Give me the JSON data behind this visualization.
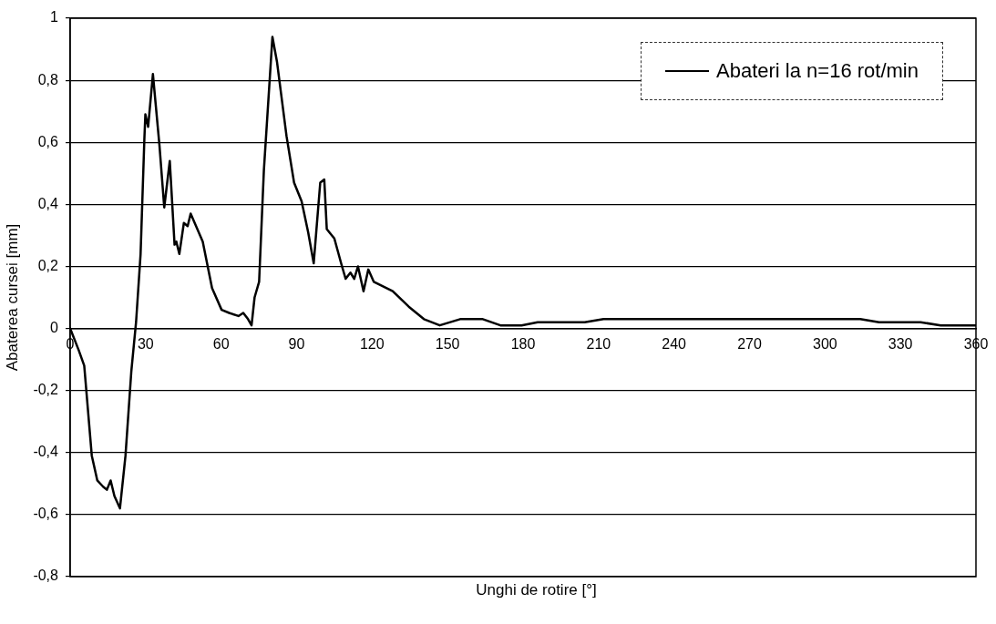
{
  "chart_data": {
    "type": "line",
    "xlabel": "Unghi de rotire [°]",
    "ylabel": "Abaterea cursei [mm]",
    "xlim": [
      0,
      360
    ],
    "xticks": [
      0,
      30,
      60,
      90,
      120,
      150,
      180,
      210,
      240,
      270,
      300,
      330,
      360
    ],
    "ylim": [
      -0.8,
      1
    ],
    "yticks": [
      {
        "value": -0.8,
        "label": "-0,8"
      },
      {
        "value": -0.6,
        "label": "-0,6"
      },
      {
        "value": -0.4,
        "label": "-0,4"
      },
      {
        "value": -0.2,
        "label": "-0,2"
      },
      0,
      {
        "value": 0.2,
        "label": "0,2"
      },
      {
        "value": 0.4,
        "label": "0,4"
      },
      {
        "value": 0.6,
        "label": "0,6"
      },
      {
        "value": 0.8,
        "label": "0,8"
      },
      1
    ],
    "grid": "y",
    "legend": "top right",
    "marker": "none",
    "line_style": "solid",
    "series": [
      {
        "name": "Abateri la n=16 rot/min",
        "color": "#000000",
        "x": [
          0,
          3.4,
          5.6,
          8.6,
          10.8,
          13.1,
          14.6,
          16.1,
          17.6,
          19.8,
          22,
          24.3,
          26.2,
          28,
          29.5,
          29.9,
          31,
          32.9,
          35.5,
          37.4,
          39.6,
          41.5,
          42.2,
          43.4,
          45.2,
          46.7,
          47.9,
          52.7,
          56.4,
          60.2,
          63.2,
          66.9,
          68.8,
          70.7,
          72.1,
          73.3,
          75.1,
          77,
          80.4,
          82.2,
          86,
          89,
          92,
          94.6,
          96.8,
          99.4,
          101,
          102,
          105,
          107.7,
          109.5,
          111.4,
          112.9,
          114.4,
          116.6,
          118.5,
          120.7,
          128.2,
          134.6,
          140.6,
          146.9,
          155,
          164,
          171,
          179.4,
          185.8,
          204.5,
          212,
          314,
          321.5,
          338,
          346,
          360
        ],
        "values": [
          0,
          -0.07,
          -0.12,
          -0.41,
          -0.49,
          -0.51,
          -0.52,
          -0.49,
          -0.54,
          -0.58,
          -0.41,
          -0.14,
          0.02,
          0.24,
          0.61,
          0.69,
          0.65,
          0.82,
          0.59,
          0.39,
          0.54,
          0.27,
          0.28,
          0.24,
          0.34,
          0.33,
          0.37,
          0.28,
          0.13,
          0.06,
          0.05,
          0.04,
          0.05,
          0.03,
          0.01,
          0.1,
          0.15,
          0.51,
          0.94,
          0.86,
          0.62,
          0.47,
          0.41,
          0.31,
          0.21,
          0.47,
          0.48,
          0.32,
          0.29,
          0.21,
          0.16,
          0.18,
          0.16,
          0.2,
          0.12,
          0.19,
          0.15,
          0.12,
          0.07,
          0.03,
          0.01,
          0.03,
          0.03,
          0.01,
          0.01,
          0.02,
          0.02,
          0.03,
          0.03,
          0.02,
          0.02,
          0.01,
          0.01
        ]
      }
    ]
  }
}
